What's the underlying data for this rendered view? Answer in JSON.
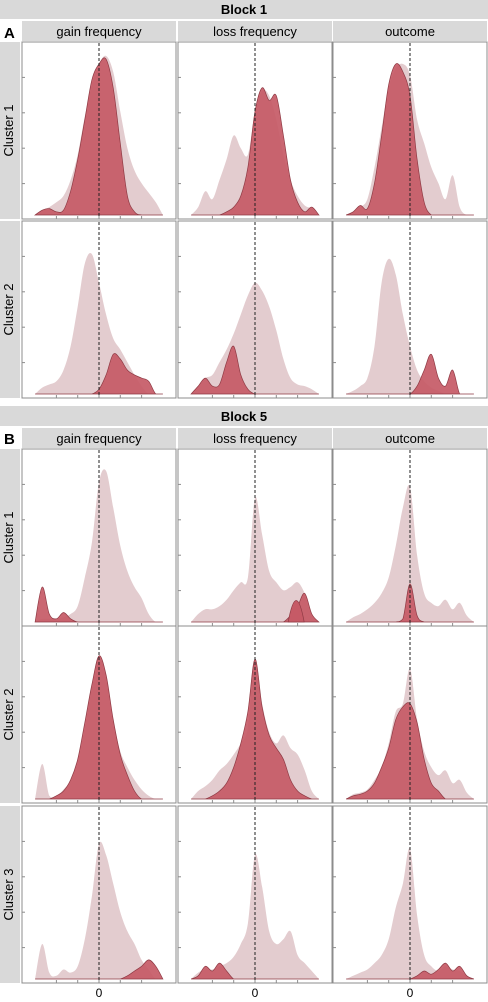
{
  "colors": {
    "strip_bg": "#d9d9d9",
    "panel_border": "#8c8c8c",
    "highlight": "#c65a66",
    "highlight_stroke": "#8f3a44",
    "background_density": "#e3cccf",
    "vline": "#222222"
  },
  "chart_data": [
    {
      "type": "area",
      "block": "Block 1",
      "panel_letter": "A",
      "columns": [
        "gain frequency",
        "loss frequency",
        "outcome"
      ],
      "rows": [
        "Cluster 1",
        "Cluster 2"
      ],
      "x_tick_label": "",
      "x_range": [
        -1,
        1
      ],
      "y_range": [
        0,
        1
      ],
      "reference_line_x": 0,
      "x": [
        -0.9,
        -0.8,
        -0.7,
        -0.6,
        -0.5,
        -0.4,
        -0.3,
        -0.2,
        -0.1,
        0.0,
        0.1,
        0.2,
        0.3,
        0.4,
        0.5,
        0.6,
        0.7,
        0.8,
        0.9
      ],
      "panels": [
        {
          "row": "Cluster 1",
          "column": "gain frequency",
          "background": [
            0.0,
            0.03,
            0.05,
            0.08,
            0.12,
            0.22,
            0.38,
            0.62,
            0.82,
            0.95,
            1.0,
            0.9,
            0.65,
            0.42,
            0.28,
            0.2,
            0.14,
            0.08,
            0.0
          ],
          "highlight": [
            0.0,
            0.03,
            0.04,
            0.02,
            0.03,
            0.15,
            0.35,
            0.6,
            0.85,
            0.95,
            0.98,
            0.8,
            0.45,
            0.12,
            0.02,
            0.0,
            0.0,
            0.0,
            0.0
          ]
        },
        {
          "row": "Cluster 1",
          "column": "loss frequency",
          "background": [
            0.0,
            0.05,
            0.15,
            0.1,
            0.22,
            0.35,
            0.5,
            0.42,
            0.38,
            0.65,
            0.78,
            0.75,
            0.6,
            0.38,
            0.22,
            0.12,
            0.06,
            0.04,
            0.0
          ],
          "highlight": [
            0.0,
            0.0,
            0.0,
            0.0,
            0.0,
            0.02,
            0.05,
            0.12,
            0.3,
            0.65,
            0.8,
            0.72,
            0.75,
            0.5,
            0.22,
            0.08,
            0.02,
            0.05,
            0.0
          ]
        },
        {
          "row": "Cluster 1",
          "column": "outcome",
          "background": [
            0.0,
            0.02,
            0.05,
            0.1,
            0.3,
            0.55,
            0.8,
            0.92,
            0.95,
            0.88,
            0.6,
            0.45,
            0.3,
            0.2,
            0.1,
            0.25,
            0.05,
            0.0,
            0.0
          ],
          "highlight": [
            0.0,
            0.02,
            0.06,
            0.04,
            0.2,
            0.5,
            0.82,
            0.95,
            0.9,
            0.75,
            0.35,
            0.08,
            0.0,
            0.0,
            0.0,
            0.0,
            0.0,
            0.0,
            0.0
          ]
        },
        {
          "row": "Cluster 2",
          "column": "gain frequency",
          "background": [
            0.0,
            0.04,
            0.06,
            0.08,
            0.15,
            0.3,
            0.55,
            0.82,
            0.88,
            0.7,
            0.5,
            0.35,
            0.28,
            0.2,
            0.12,
            0.05,
            0.0,
            0.0,
            0.0
          ],
          "highlight": [
            0.0,
            0.0,
            0.0,
            0.0,
            0.0,
            0.0,
            0.0,
            0.0,
            0.0,
            0.03,
            0.12,
            0.25,
            0.22,
            0.15,
            0.12,
            0.1,
            0.08,
            0.0,
            0.0
          ]
        },
        {
          "row": "Cluster 2",
          "column": "loss frequency",
          "background": [
            0.0,
            0.05,
            0.1,
            0.12,
            0.2,
            0.28,
            0.38,
            0.5,
            0.62,
            0.7,
            0.65,
            0.55,
            0.4,
            0.22,
            0.1,
            0.06,
            0.05,
            0.03,
            0.0
          ],
          "highlight": [
            0.0,
            0.05,
            0.1,
            0.05,
            0.06,
            0.2,
            0.3,
            0.12,
            0.03,
            0.0,
            0.0,
            0.0,
            0.0,
            0.0,
            0.0,
            0.0,
            0.0,
            0.0,
            0.0
          ]
        },
        {
          "row": "Cluster 2",
          "column": "outcome",
          "background": [
            0.0,
            0.02,
            0.05,
            0.1,
            0.3,
            0.7,
            0.85,
            0.75,
            0.5,
            0.3,
            0.15,
            0.08,
            0.04,
            0.02,
            0.0,
            0.0,
            0.0,
            0.0,
            0.0
          ],
          "highlight": [
            0.0,
            0.0,
            0.0,
            0.0,
            0.0,
            0.0,
            0.0,
            0.0,
            0.0,
            0.0,
            0.05,
            0.15,
            0.25,
            0.1,
            0.05,
            0.15,
            0.0,
            0.0,
            0.0
          ]
        }
      ]
    },
    {
      "type": "area",
      "block": "Block 5",
      "panel_letter": "B",
      "columns": [
        "gain frequency",
        "loss frequency",
        "outcome"
      ],
      "rows": [
        "Cluster 1",
        "Cluster 2",
        "Cluster 3"
      ],
      "x_tick_label": "0",
      "x_range": [
        -1,
        1
      ],
      "y_range": [
        0,
        1
      ],
      "reference_line_x": 0,
      "x": [
        -0.9,
        -0.8,
        -0.7,
        -0.6,
        -0.5,
        -0.4,
        -0.3,
        -0.2,
        -0.1,
        0.0,
        0.1,
        0.2,
        0.3,
        0.4,
        0.5,
        0.6,
        0.7,
        0.8,
        0.9
      ],
      "panels": [
        {
          "row": "Cluster 1",
          "column": "gain frequency",
          "background": [
            0.0,
            0.02,
            0.02,
            0.02,
            0.03,
            0.05,
            0.1,
            0.28,
            0.5,
            0.88,
            0.95,
            0.72,
            0.48,
            0.32,
            0.22,
            0.15,
            0.05,
            0.0,
            0.0
          ],
          "highlight": [
            0.0,
            0.22,
            0.05,
            0.02,
            0.06,
            0.02,
            0.0,
            0.0,
            0.0,
            0.0,
            0.0,
            0.0,
            0.0,
            0.0,
            0.0,
            0.0,
            0.0,
            0.0,
            0.0
          ]
        },
        {
          "row": "Cluster 1",
          "column": "loss frequency",
          "background": [
            0.0,
            0.05,
            0.08,
            0.08,
            0.1,
            0.14,
            0.2,
            0.25,
            0.28,
            0.78,
            0.55,
            0.32,
            0.25,
            0.2,
            0.22,
            0.25,
            0.18,
            0.05,
            0.0
          ],
          "highlight": [
            0.0,
            0.0,
            0.0,
            0.0,
            0.0,
            0.0,
            0.0,
            0.0,
            0.0,
            0.0,
            0.0,
            0.0,
            0.0,
            0.0,
            0.04,
            0.1,
            0.18,
            0.05,
            0.0
          ],
          "highlight_peaks": [
            {
              "x": 0.58,
              "y": 0.22
            }
          ]
        },
        {
          "row": "Cluster 1",
          "column": "outcome",
          "background": [
            0.0,
            0.03,
            0.05,
            0.08,
            0.12,
            0.18,
            0.28,
            0.48,
            0.72,
            0.85,
            0.42,
            0.18,
            0.12,
            0.1,
            0.14,
            0.08,
            0.12,
            0.04,
            0.0
          ],
          "highlight": [
            0.0,
            0.0,
            0.0,
            0.0,
            0.0,
            0.0,
            0.0,
            0.0,
            0.02,
            0.24,
            0.04,
            0.0,
            0.0,
            0.0,
            0.0,
            0.0,
            0.0,
            0.0,
            0.0
          ]
        },
        {
          "row": "Cluster 2",
          "column": "gain frequency",
          "background": [
            0.0,
            0.22,
            0.02,
            0.02,
            0.06,
            0.12,
            0.25,
            0.45,
            0.7,
            0.88,
            0.78,
            0.5,
            0.3,
            0.2,
            0.12,
            0.06,
            0.02,
            0.0,
            0.0
          ],
          "highlight": [
            0.0,
            0.0,
            0.0,
            0.02,
            0.05,
            0.12,
            0.25,
            0.48,
            0.72,
            0.9,
            0.78,
            0.5,
            0.28,
            0.15,
            0.05,
            0.0,
            0.0,
            0.0,
            0.0
          ]
        },
        {
          "row": "Cluster 2",
          "column": "loss frequency",
          "background": [
            0.0,
            0.05,
            0.08,
            0.12,
            0.18,
            0.22,
            0.28,
            0.35,
            0.45,
            0.88,
            0.6,
            0.42,
            0.35,
            0.4,
            0.32,
            0.28,
            0.18,
            0.05,
            0.0
          ],
          "highlight": [
            0.0,
            0.0,
            0.0,
            0.02,
            0.05,
            0.1,
            0.2,
            0.35,
            0.55,
            0.88,
            0.58,
            0.4,
            0.32,
            0.25,
            0.12,
            0.05,
            0.02,
            0.0,
            0.0
          ]
        },
        {
          "row": "Cluster 2",
          "column": "outcome",
          "background": [
            0.0,
            0.03,
            0.04,
            0.06,
            0.12,
            0.2,
            0.35,
            0.55,
            0.6,
            0.82,
            0.5,
            0.3,
            0.2,
            0.15,
            0.18,
            0.1,
            0.12,
            0.04,
            0.0
          ],
          "highlight": [
            0.0,
            0.02,
            0.03,
            0.05,
            0.1,
            0.2,
            0.32,
            0.5,
            0.58,
            0.6,
            0.48,
            0.25,
            0.1,
            0.05,
            0.0,
            0.0,
            0.0,
            0.0,
            0.0
          ]
        },
        {
          "row": "Cluster 3",
          "column": "gain frequency",
          "background": [
            0.0,
            0.22,
            0.04,
            0.02,
            0.06,
            0.04,
            0.08,
            0.25,
            0.52,
            0.85,
            0.78,
            0.6,
            0.42,
            0.3,
            0.22,
            0.12,
            0.06,
            0.0,
            0.0
          ],
          "highlight": [
            0.0,
            0.0,
            0.0,
            0.0,
            0.0,
            0.0,
            0.0,
            0.0,
            0.0,
            0.0,
            0.0,
            0.0,
            0.0,
            0.02,
            0.05,
            0.08,
            0.12,
            0.08,
            0.0
          ]
        },
        {
          "row": "Cluster 3",
          "column": "loss frequency",
          "background": [
            0.0,
            0.04,
            0.06,
            0.06,
            0.08,
            0.1,
            0.14,
            0.22,
            0.35,
            0.78,
            0.58,
            0.3,
            0.22,
            0.25,
            0.3,
            0.15,
            0.1,
            0.05,
            0.0
          ],
          "highlight": [
            0.0,
            0.02,
            0.08,
            0.05,
            0.1,
            0.05,
            0.0,
            0.0,
            0.0,
            0.0,
            0.0,
            0.0,
            0.0,
            0.0,
            0.0,
            0.0,
            0.0,
            0.0,
            0.0
          ]
        },
        {
          "row": "Cluster 3",
          "column": "outcome",
          "background": [
            0.0,
            0.02,
            0.04,
            0.06,
            0.1,
            0.15,
            0.25,
            0.45,
            0.6,
            0.82,
            0.4,
            0.15,
            0.08,
            0.05,
            0.08,
            0.06,
            0.05,
            0.02,
            0.0
          ],
          "highlight": [
            0.0,
            0.0,
            0.0,
            0.0,
            0.0,
            0.0,
            0.0,
            0.0,
            0.0,
            0.0,
            0.02,
            0.05,
            0.03,
            0.06,
            0.1,
            0.05,
            0.08,
            0.02,
            0.0
          ]
        }
      ]
    }
  ]
}
